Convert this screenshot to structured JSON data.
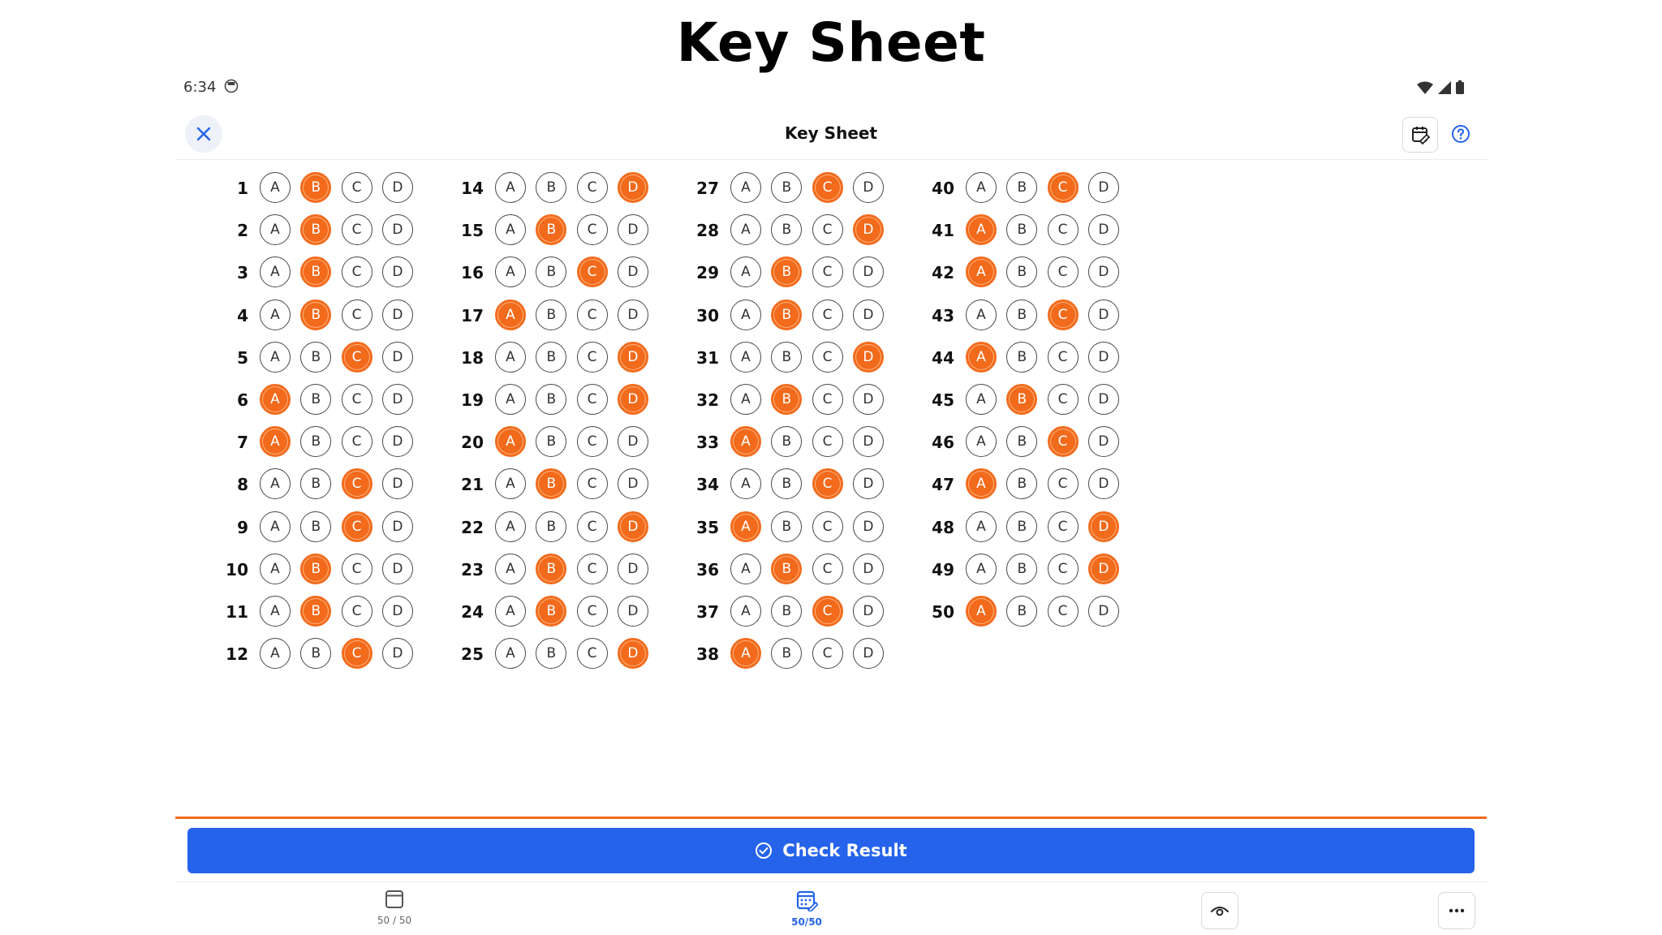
{
  "heading": "Key Sheet",
  "status": {
    "time": "6:34"
  },
  "app_bar": {
    "title": "Key Sheet"
  },
  "options": [
    "A",
    "B",
    "C",
    "D"
  ],
  "columns": [
    {
      "questions": [
        {
          "num": "1",
          "answer": "B"
        },
        {
          "num": "2",
          "answer": "B"
        },
        {
          "num": "3",
          "answer": "B"
        },
        {
          "num": "4",
          "answer": "B"
        },
        {
          "num": "5",
          "answer": "C"
        },
        {
          "num": "6",
          "answer": "A"
        },
        {
          "num": "7",
          "answer": "A"
        },
        {
          "num": "8",
          "answer": "C"
        },
        {
          "num": "9",
          "answer": "C"
        },
        {
          "num": "10",
          "answer": "B"
        },
        {
          "num": "11",
          "answer": "B"
        },
        {
          "num": "12",
          "answer": "C"
        }
      ]
    },
    {
      "questions": [
        {
          "num": "14",
          "answer": "D"
        },
        {
          "num": "15",
          "answer": "B"
        },
        {
          "num": "16",
          "answer": "C"
        },
        {
          "num": "17",
          "answer": "A"
        },
        {
          "num": "18",
          "answer": "D"
        },
        {
          "num": "19",
          "answer": "D"
        },
        {
          "num": "20",
          "answer": "A"
        },
        {
          "num": "21",
          "answer": "B"
        },
        {
          "num": "22",
          "answer": "D"
        },
        {
          "num": "23",
          "answer": "B"
        },
        {
          "num": "24",
          "answer": "B"
        },
        {
          "num": "25",
          "answer": "D"
        }
      ]
    },
    {
      "questions": [
        {
          "num": "27",
          "answer": "C"
        },
        {
          "num": "28",
          "answer": "D"
        },
        {
          "num": "29",
          "answer": "B"
        },
        {
          "num": "30",
          "answer": "B"
        },
        {
          "num": "31",
          "answer": "D"
        },
        {
          "num": "32",
          "answer": "B"
        },
        {
          "num": "33",
          "answer": "A"
        },
        {
          "num": "34",
          "answer": "C"
        },
        {
          "num": "35",
          "answer": "A"
        },
        {
          "num": "36",
          "answer": "B"
        },
        {
          "num": "37",
          "answer": "C"
        },
        {
          "num": "38",
          "answer": "A"
        }
      ]
    },
    {
      "questions": [
        {
          "num": "40",
          "answer": "C"
        },
        {
          "num": "41",
          "answer": "A"
        },
        {
          "num": "42",
          "answer": "A"
        },
        {
          "num": "43",
          "answer": "C"
        },
        {
          "num": "44",
          "answer": "A"
        },
        {
          "num": "45",
          "answer": "B"
        },
        {
          "num": "46",
          "answer": "C"
        },
        {
          "num": "47",
          "answer": "A"
        },
        {
          "num": "48",
          "answer": "D"
        },
        {
          "num": "49",
          "answer": "D"
        },
        {
          "num": "50",
          "answer": "A"
        }
      ]
    }
  ],
  "check_button": {
    "label": "Check Result"
  },
  "bottom_nav": {
    "sheets_label": "50 / 50",
    "key_label": "50/50"
  },
  "colors": {
    "selected": "#f26a1b",
    "primary": "#2563eb"
  },
  "icons": {
    "close": "close-icon",
    "tool": "calendar-edit-icon",
    "help": "help-icon",
    "check": "check-circle-icon",
    "sheets": "sheet-icon",
    "key": "key-grid-icon",
    "eye": "eye-icon",
    "more": "more-icon"
  }
}
